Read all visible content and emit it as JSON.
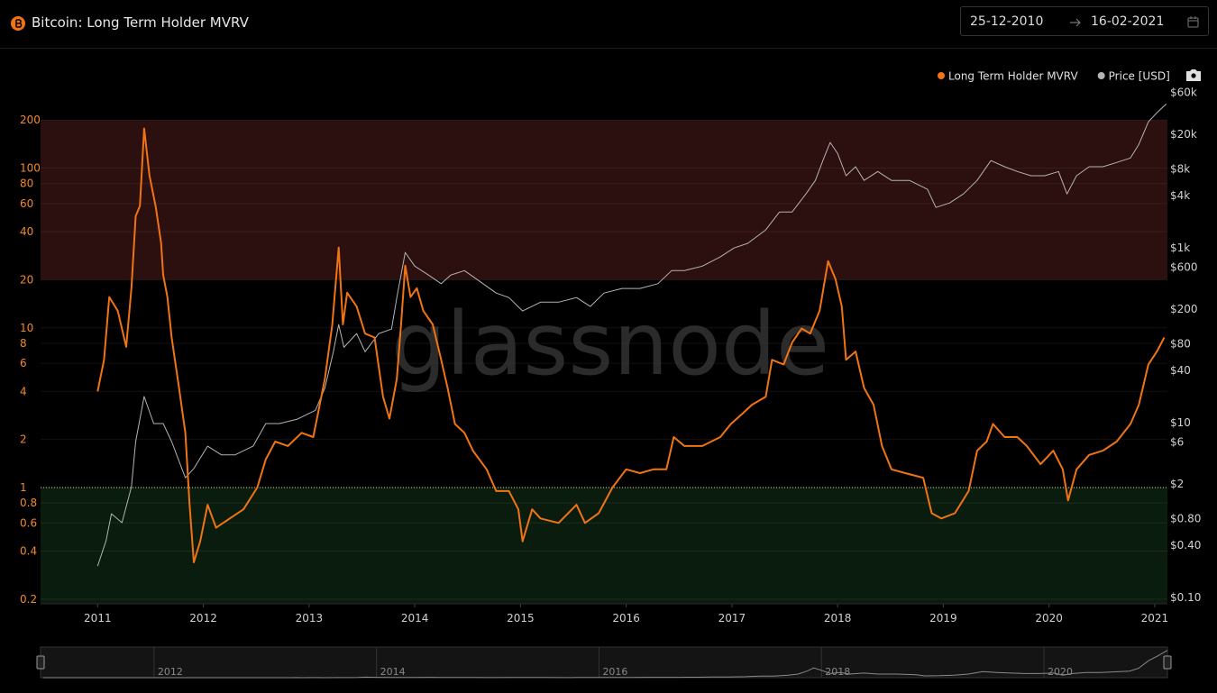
{
  "chart_data": {
    "type": "line",
    "title": "Bitcoin: Long Term Holder MVRV",
    "date_range": [
      "25-12-2010",
      "16-02-2021"
    ],
    "watermark": "glassnode",
    "log_scale": true,
    "grid": true,
    "legend": "top-right",
    "xlim": [
      2010.46,
      2021.12
    ],
    "xticks": [
      2011,
      2012,
      2013,
      2014,
      2015,
      2016,
      2017,
      2018,
      2019,
      2020,
      2021
    ],
    "ylim": [
      0.187,
      360
    ],
    "yticks": [
      0.2,
      0.4,
      0.6,
      0.8,
      1,
      2,
      4,
      6,
      8,
      10,
      20,
      40,
      60,
      80,
      100,
      200
    ],
    "y2lim": [
      0.085,
      85000
    ],
    "y2ticks": [
      {
        "value": 0.1,
        "label": "$0.10"
      },
      {
        "value": 0.4,
        "label": "$0.40"
      },
      {
        "value": 0.8,
        "label": "$0.80"
      },
      {
        "value": 2,
        "label": "$2"
      },
      {
        "value": 6,
        "label": "$6"
      },
      {
        "value": 10,
        "label": "$10"
      },
      {
        "value": 40,
        "label": "$40"
      },
      {
        "value": 80,
        "label": "$80"
      },
      {
        "value": 200,
        "label": "$200"
      },
      {
        "value": 600,
        "label": "$600"
      },
      {
        "value": 1000,
        "label": "$1k"
      },
      {
        "value": 4000,
        "label": "$4k"
      },
      {
        "value": 8000,
        "label": "$8k"
      },
      {
        "value": 20000,
        "label": "$20k"
      },
      {
        "value": 60000,
        "label": "$60k"
      }
    ],
    "bands": [
      {
        "from": 20,
        "to": 200,
        "color": "#2c0f0f"
      },
      {
        "to": 1,
        "color": "#0a1c0e"
      }
    ],
    "reference_line": 1,
    "series": [
      {
        "name": "Long Term Holder MVRV",
        "color": "#f07414",
        "x": [
          2011.0,
          2011.06,
          2011.11,
          2011.19,
          2011.27,
          2011.32,
          2011.36,
          2011.4,
          2011.44,
          2011.49,
          2011.55,
          2011.6,
          2011.62,
          2011.66,
          2011.7,
          2011.77,
          2011.83,
          2011.87,
          2011.91,
          2011.97,
          2012.04,
          2012.12,
          2012.25,
          2012.38,
          2012.51,
          2012.59,
          2012.68,
          2012.8,
          2012.93,
          2013.04,
          2013.15,
          2013.22,
          2013.28,
          2013.32,
          2013.36,
          2013.45,
          2013.53,
          2013.62,
          2013.7,
          2013.76,
          2013.83,
          2013.87,
          2013.91,
          2013.96,
          2014.02,
          2014.08,
          2014.17,
          2014.25,
          2014.31,
          2014.38,
          2014.47,
          2014.55,
          2014.68,
          2014.77,
          2014.89,
          2014.98,
          2015.02,
          2015.11,
          2015.19,
          2015.36,
          2015.53,
          2015.61,
          2015.74,
          2015.87,
          2016.0,
          2016.13,
          2016.26,
          2016.38,
          2016.45,
          2016.55,
          2016.72,
          2016.89,
          2016.99,
          2017.1,
          2017.19,
          2017.32,
          2017.38,
          2017.49,
          2017.57,
          2017.66,
          2017.74,
          2017.83,
          2017.91,
          2017.98,
          2018.04,
          2018.08,
          2018.17,
          2018.25,
          2018.34,
          2018.42,
          2018.51,
          2018.64,
          2018.81,
          2018.89,
          2018.98,
          2019.11,
          2019.24,
          2019.32,
          2019.41,
          2019.47,
          2019.58,
          2019.7,
          2019.79,
          2019.92,
          2020.04,
          2020.13,
          2020.18,
          2020.26,
          2020.38,
          2020.51,
          2020.64,
          2020.77,
          2020.85,
          2020.94,
          2021.02,
          2021.09
        ],
        "values": [
          4.0,
          6.3,
          15.6,
          12.8,
          7.6,
          17.7,
          50,
          58,
          177,
          90,
          57,
          34,
          21.5,
          15.6,
          8.7,
          4.2,
          2.2,
          0.78,
          0.34,
          0.46,
          0.78,
          0.56,
          0.64,
          0.73,
          1.0,
          1.5,
          1.94,
          1.82,
          2.2,
          2.07,
          4.8,
          10.5,
          31.8,
          10.5,
          16.6,
          13.6,
          9.2,
          8.7,
          3.7,
          2.7,
          4.8,
          10.5,
          24.5,
          15.6,
          17.7,
          12.8,
          10.5,
          6.3,
          4.2,
          2.5,
          2.2,
          1.7,
          1.3,
          0.95,
          0.95,
          0.73,
          0.46,
          0.73,
          0.64,
          0.6,
          0.78,
          0.6,
          0.69,
          1.0,
          1.3,
          1.23,
          1.3,
          1.3,
          2.07,
          1.82,
          1.82,
          2.07,
          2.5,
          2.9,
          3.3,
          3.7,
          6.3,
          5.9,
          8.1,
          9.9,
          9.2,
          12.8,
          26.2,
          20.2,
          13.6,
          6.3,
          7.1,
          4.2,
          3.3,
          1.82,
          1.3,
          1.23,
          1.15,
          0.69,
          0.64,
          0.69,
          0.95,
          1.7,
          1.94,
          2.5,
          2.07,
          2.07,
          1.82,
          1.4,
          1.7,
          1.3,
          0.83,
          1.3,
          1.6,
          1.7,
          1.94,
          2.5,
          3.3,
          5.9,
          7.1,
          8.7
        ]
      },
      {
        "name": "Price [USD]",
        "color": "#b4b4b4",
        "axis": "y2",
        "x": [
          2011.0,
          2011.08,
          2011.13,
          2011.23,
          2011.32,
          2011.36,
          2011.44,
          2011.53,
          2011.62,
          2011.7,
          2011.83,
          2011.91,
          2012.04,
          2012.17,
          2012.3,
          2012.47,
          2012.59,
          2012.72,
          2012.89,
          2013.06,
          2013.15,
          2013.23,
          2013.28,
          2013.33,
          2013.45,
          2013.53,
          2013.66,
          2013.78,
          2013.83,
          2013.91,
          2014.0,
          2014.13,
          2014.25,
          2014.34,
          2014.47,
          2014.59,
          2014.77,
          2014.89,
          2015.02,
          2015.19,
          2015.36,
          2015.53,
          2015.66,
          2015.79,
          2015.96,
          2016.13,
          2016.3,
          2016.43,
          2016.55,
          2016.72,
          2016.89,
          2017.02,
          2017.15,
          2017.32,
          2017.45,
          2017.57,
          2017.7,
          2017.79,
          2017.87,
          2017.93,
          2018.0,
          2018.08,
          2018.17,
          2018.25,
          2018.38,
          2018.51,
          2018.68,
          2018.85,
          2018.93,
          2019.06,
          2019.19,
          2019.32,
          2019.45,
          2019.58,
          2019.7,
          2019.83,
          2019.96,
          2020.09,
          2020.17,
          2020.26,
          2020.38,
          2020.51,
          2020.64,
          2020.77,
          2020.85,
          2020.94,
          2021.02,
          2021.11
        ],
        "values": [
          0.23,
          0.45,
          0.91,
          0.72,
          1.85,
          6.1,
          20,
          9.8,
          9.8,
          6.1,
          2.35,
          3.0,
          5.4,
          4.3,
          4.3,
          5.4,
          9.8,
          9.8,
          11,
          13.9,
          25,
          65,
          133,
          73,
          105,
          65,
          105,
          118,
          271,
          890,
          620,
          490,
          390,
          490,
          550,
          435,
          305,
          271,
          190,
          240,
          240,
          271,
          214,
          305,
          344,
          344,
          390,
          550,
          550,
          620,
          790,
          1000,
          1130,
          1610,
          2580,
          2580,
          4150,
          5930,
          10700,
          16100,
          12100,
          6700,
          8500,
          5930,
          7500,
          5930,
          5930,
          4680,
          2910,
          3270,
          4150,
          5930,
          10000,
          8500,
          7500,
          6700,
          6700,
          7500,
          4150,
          6700,
          8500,
          8500,
          9500,
          10700,
          15300,
          27700,
          35200,
          44600
        ]
      }
    ],
    "navigator": {
      "xlim": [
        2010.98,
        2021.11
      ],
      "ylim": [
        0,
        50000
      ],
      "xticks": [
        2012,
        2014,
        2016,
        2018,
        2020
      ]
    }
  }
}
